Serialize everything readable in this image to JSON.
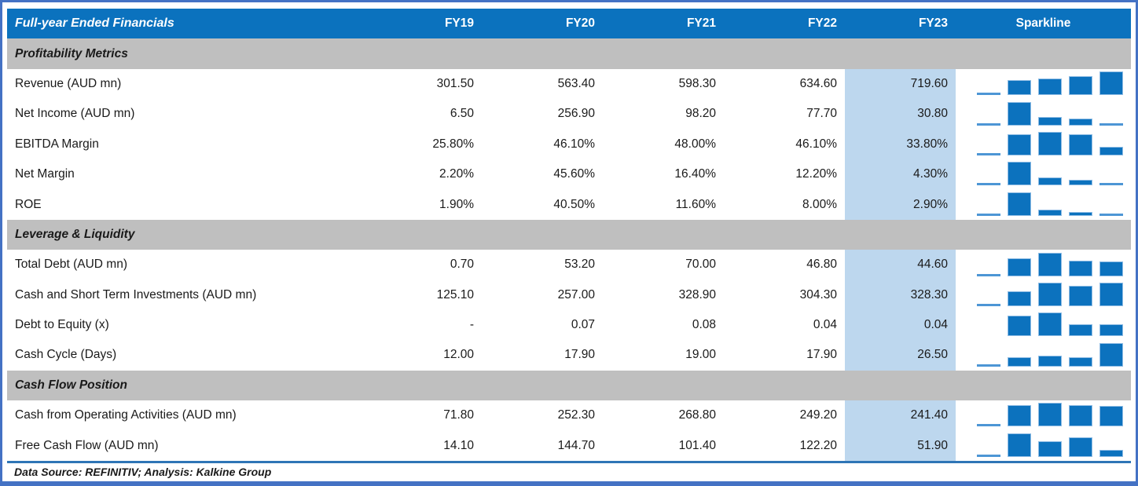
{
  "header": {
    "title": "Full-year Ended Financials",
    "columns": [
      "FY19",
      "FY20",
      "FY21",
      "FY22",
      "FY23"
    ],
    "sparkline_label": "Sparkline",
    "highlighted_column": "FY23"
  },
  "footer": {
    "source": "Data Source: REFINITIV; Analysis: Kalkine Group"
  },
  "colors": {
    "header_bg": "#0B72BE",
    "section_bg": "#BFBFBF",
    "highlight_bg": "#BDD7EE",
    "bar": "#0C72BE",
    "frame_border": "#4472C4",
    "rule": "#2E75B6",
    "header_text": "#FFFFFF",
    "body_text": "#1A1A1A"
  },
  "chart_data": {
    "type": "table",
    "title": "Full-year Ended Financials",
    "columns": [
      "FY19",
      "FY20",
      "FY21",
      "FY22",
      "FY23",
      "Sparkline"
    ],
    "sparkline_type": "column",
    "sparkline_note": "per-row column sparkline scaled from row min to row max; dash values render as gaps",
    "sections": [
      {
        "label": "Profitability Metrics",
        "rows": [
          {
            "label": "Revenue (AUD mn)",
            "values": [
              "301.50",
              "563.40",
              "598.30",
              "634.60",
              "719.60"
            ]
          },
          {
            "label": "Net Income (AUD mn)",
            "values": [
              "6.50",
              "256.90",
              "98.20",
              "77.70",
              "30.80"
            ]
          },
          {
            "label": "EBITDA Margin",
            "values": [
              "25.80%",
              "46.10%",
              "48.00%",
              "46.10%",
              "33.80%"
            ]
          },
          {
            "label": "Net Margin",
            "values": [
              "2.20%",
              "45.60%",
              "16.40%",
              "12.20%",
              "4.30%"
            ]
          },
          {
            "label": "ROE",
            "values": [
              "1.90%",
              "40.50%",
              "11.60%",
              "8.00%",
              "2.90%"
            ]
          }
        ]
      },
      {
        "label": "Leverage & Liquidity",
        "rows": [
          {
            "label": "Total Debt (AUD mn)",
            "values": [
              "0.70",
              "53.20",
              "70.00",
              "46.80",
              "44.60"
            ]
          },
          {
            "label": "Cash and Short Term Investments (AUD mn)",
            "values": [
              "125.10",
              "257.00",
              "328.90",
              "304.30",
              "328.30"
            ]
          },
          {
            "label": "Debt to Equity (x)",
            "values": [
              "-",
              "0.07",
              "0.08",
              "0.04",
              "0.04"
            ]
          },
          {
            "label": "Cash Cycle (Days)",
            "values": [
              "12.00",
              "17.90",
              "19.00",
              "17.90",
              "26.50"
            ]
          }
        ]
      },
      {
        "label": "Cash Flow Position",
        "rows": [
          {
            "label": "Cash from Operating Activities (AUD mn)",
            "values": [
              "71.80",
              "252.30",
              "268.80",
              "249.20",
              "241.40"
            ]
          },
          {
            "label": "Free Cash Flow (AUD mn)",
            "values": [
              "14.10",
              "144.70",
              "101.40",
              "122.20",
              "51.90"
            ]
          }
        ]
      }
    ]
  }
}
